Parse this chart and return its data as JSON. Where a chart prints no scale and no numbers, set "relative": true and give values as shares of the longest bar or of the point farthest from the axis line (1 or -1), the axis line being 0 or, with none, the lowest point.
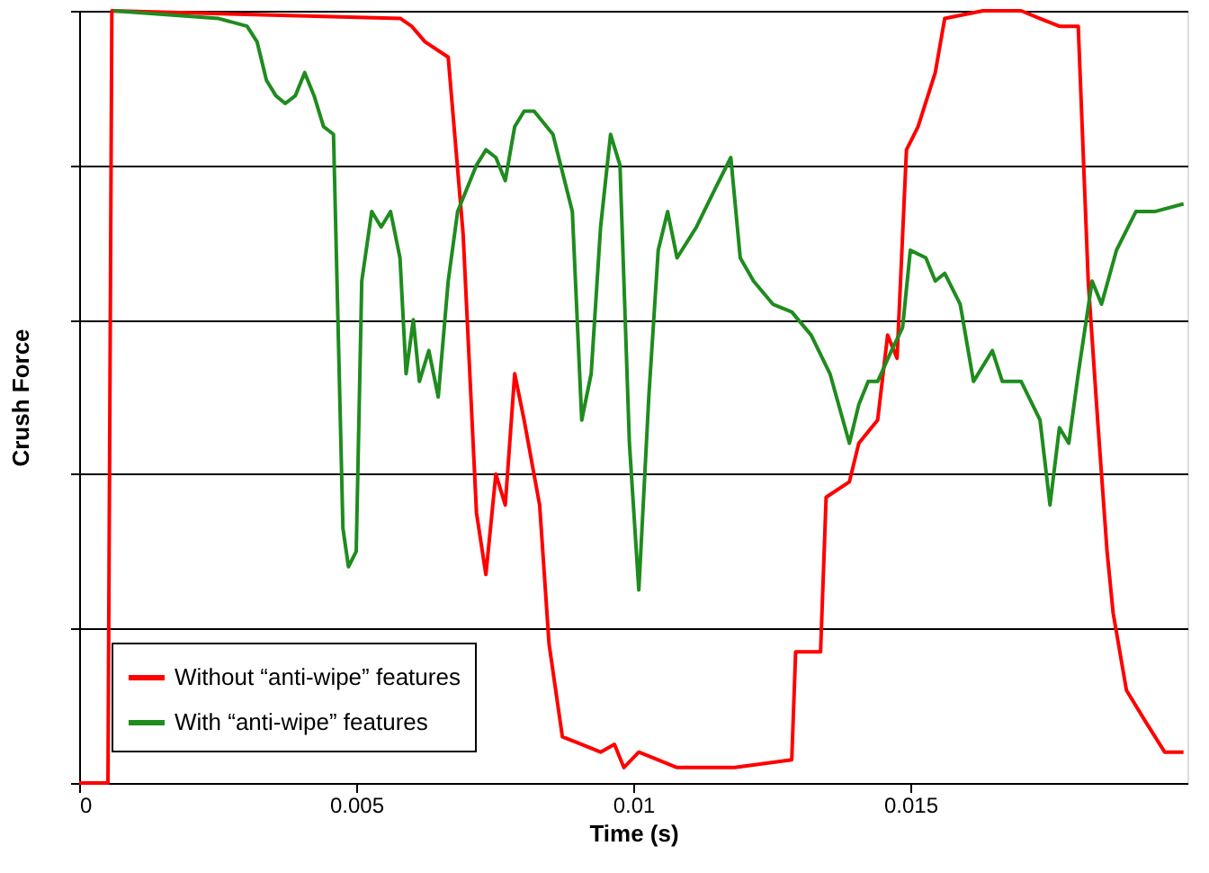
{
  "chart_data": {
    "type": "line",
    "xlabel": "Time (s)",
    "ylabel": "Crush Force",
    "relative": true,
    "xlim": [
      0,
      0.02
    ],
    "xticks": [
      0,
      0.005,
      0.01,
      0.015
    ],
    "grid": "y",
    "legend": "bottom left",
    "line_style": "solid",
    "marker": "none",
    "series": [
      {
        "name": "Without “anti-wipe” features",
        "color": "#ff0000",
        "x": [
          0,
          0.00052,
          0.00059,
          0.0058,
          0.006,
          0.00624,
          0.00666,
          0.00693,
          0.00717,
          0.00734,
          0.00752,
          0.00769,
          0.00786,
          0.00803,
          0.00831,
          0.00848,
          0.00872,
          0.00907,
          0.00941,
          0.00966,
          0.00983,
          0.0101,
          0.01079,
          0.01183,
          0.01286,
          0.01293,
          0.01338,
          0.01348,
          0.0139,
          0.01407,
          0.01441,
          0.01459,
          0.01476,
          0.01493,
          0.01514,
          0.01545,
          0.01562,
          0.01631,
          0.017,
          0.01734,
          0.01769,
          0.01803,
          0.01821,
          0.01838,
          0.01855,
          0.01866,
          0.0189,
          0.01924,
          0.01959,
          0.01993
        ],
        "values": [
          0,
          0,
          1.0,
          0.99,
          0.98,
          0.96,
          0.94,
          0.71,
          0.35,
          0.27,
          0.4,
          0.36,
          0.53,
          0.47,
          0.36,
          0.18,
          0.06,
          0.05,
          0.04,
          0.05,
          0.02,
          0.04,
          0.02,
          0.02,
          0.03,
          0.17,
          0.17,
          0.37,
          0.39,
          0.44,
          0.47,
          0.58,
          0.55,
          0.82,
          0.85,
          0.92,
          0.99,
          1.0,
          1.0,
          0.99,
          0.98,
          0.98,
          0.65,
          0.47,
          0.3,
          0.22,
          0.12,
          0.08,
          0.04,
          0.04
        ]
      },
      {
        "name": "With “anti-wipe” features",
        "color": "#1e8c1e",
        "x": [
          0.00062,
          0.00252,
          0.00303,
          0.00321,
          0.00338,
          0.00355,
          0.00372,
          0.0039,
          0.00407,
          0.00424,
          0.00441,
          0.00459,
          0.00476,
          0.00486,
          0.005,
          0.0051,
          0.00528,
          0.00545,
          0.00562,
          0.00579,
          0.0059,
          0.00603,
          0.00614,
          0.00631,
          0.00648,
          0.00666,
          0.00683,
          0.007,
          0.00717,
          0.00734,
          0.00752,
          0.00769,
          0.00786,
          0.00803,
          0.00821,
          0.00855,
          0.0089,
          0.00907,
          0.00924,
          0.00941,
          0.00959,
          0.00976,
          0.00993,
          0.0101,
          0.01028,
          0.01045,
          0.01062,
          0.01079,
          0.01114,
          0.01148,
          0.01176,
          0.01193,
          0.01217,
          0.01252,
          0.01286,
          0.01321,
          0.01355,
          0.0139,
          0.01407,
          0.01424,
          0.01441,
          0.01466,
          0.01486,
          0.015,
          0.01528,
          0.01545,
          0.01562,
          0.0159,
          0.01614,
          0.01648,
          0.01666,
          0.017,
          0.01734,
          0.01752,
          0.01769,
          0.01786,
          0.01803,
          0.01828,
          0.01845,
          0.01872,
          0.01907,
          0.01941,
          0.01993
        ],
        "values": [
          1.0,
          0.99,
          0.98,
          0.96,
          0.91,
          0.89,
          0.88,
          0.89,
          0.92,
          0.89,
          0.85,
          0.84,
          0.33,
          0.28,
          0.3,
          0.65,
          0.74,
          0.72,
          0.74,
          0.68,
          0.53,
          0.6,
          0.52,
          0.56,
          0.5,
          0.65,
          0.74,
          0.77,
          0.8,
          0.82,
          0.81,
          0.78,
          0.85,
          0.87,
          0.87,
          0.84,
          0.74,
          0.47,
          0.53,
          0.72,
          0.84,
          0.8,
          0.44,
          0.25,
          0.5,
          0.69,
          0.74,
          0.68,
          0.72,
          0.77,
          0.81,
          0.68,
          0.65,
          0.62,
          0.61,
          0.58,
          0.53,
          0.44,
          0.49,
          0.52,
          0.52,
          0.56,
          0.59,
          0.69,
          0.68,
          0.65,
          0.66,
          0.62,
          0.52,
          0.56,
          0.52,
          0.52,
          0.47,
          0.36,
          0.46,
          0.44,
          0.53,
          0.65,
          0.62,
          0.69,
          0.74,
          0.74,
          0.75
        ]
      }
    ]
  }
}
